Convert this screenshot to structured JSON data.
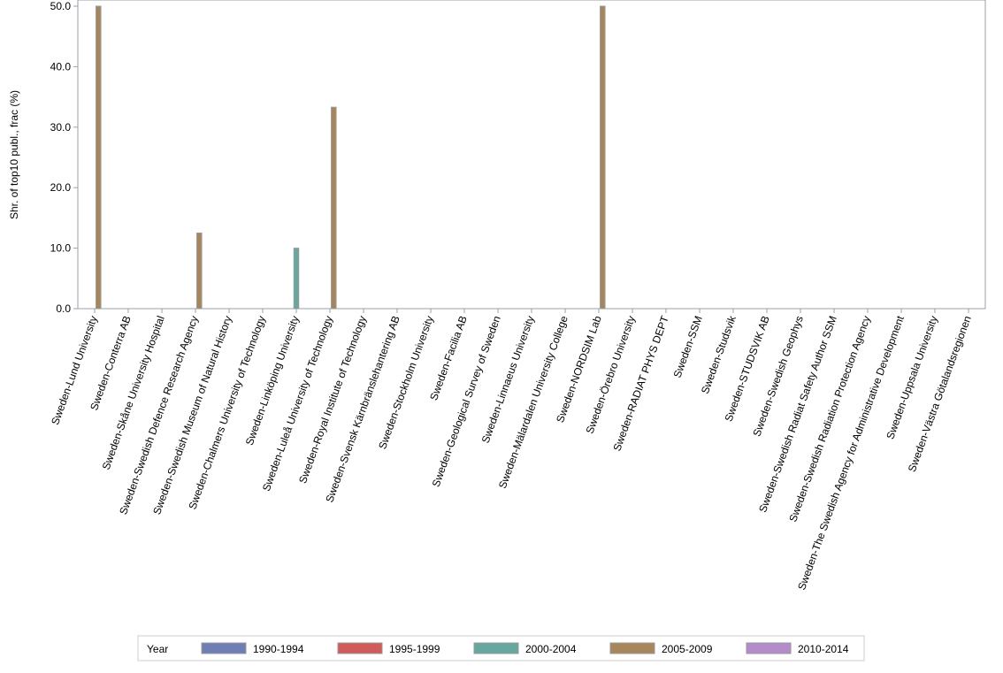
{
  "chart_data": {
    "type": "bar",
    "title": "",
    "xlabel": "",
    "ylabel": "Shr. of top10 publ., frac (%)",
    "ylim": [
      0,
      50
    ],
    "yticks": [
      "0.0",
      "10.0",
      "20.0",
      "30.0",
      "40.0",
      "50.0"
    ],
    "categories": [
      "Sweden-Lund University",
      "Sweden-Conterra AB",
      "Sweden-Skåne University Hospital",
      "Sweden-Swedish Defence Research Agency",
      "Sweden-Swedish Museum of Natural History",
      "Sweden-Chalmers University of Technology",
      "Sweden-Linköping University",
      "Sweden-Luleå University of Technology",
      "Sweden-Royal Institute of Technology",
      "Sweden-Svensk Kärnbränslehantering AB",
      "Sweden-Stockholm University",
      "Sweden-Facilia AB",
      "Sweden-Geological Survey of Sweden",
      "Sweden-Linnaeus University",
      "Sweden-Mälardalen University College",
      "Sweden-NORDSIM Lab",
      "Sweden-Örebro University",
      "Sweden-RADIAT PHYS DEPT",
      "Sweden-SSM",
      "Sweden-Studsvik",
      "Sweden-STUDSVIK AB",
      "Sweden-Swedish Geophys",
      "Sweden-Swedish Radiat Safety Author SSM",
      "Sweden-Swedish Radiation Protection Agency",
      "Sweden-The Swedish Agency for Administrative Development",
      "Sweden-Uppsala University",
      "Sweden-Västra Götalandsregionen"
    ],
    "legend_title": "Year",
    "legend_position": "bottom",
    "series": [
      {
        "name": "1990-1994",
        "color": "#6f7fb5",
        "values": [
          0,
          0,
          0,
          0,
          0,
          0,
          0,
          0,
          0,
          0,
          0,
          0,
          0,
          0,
          0,
          0,
          0,
          0,
          0,
          0,
          0,
          0,
          0,
          0,
          0,
          0,
          0
        ]
      },
      {
        "name": "1995-1999",
        "color": "#d05b5b",
        "values": [
          0,
          0,
          0,
          0,
          0,
          0,
          0,
          0,
          0,
          0,
          0,
          0,
          0,
          0,
          0,
          0,
          0,
          0,
          0,
          0,
          0,
          0,
          0,
          0,
          0,
          0,
          0
        ]
      },
      {
        "name": "2000-2004",
        "color": "#66a8a0",
        "values": [
          0,
          0,
          0,
          0,
          0,
          0,
          10,
          0,
          0,
          0,
          0,
          0,
          0,
          0,
          0,
          0,
          0,
          0,
          0,
          0,
          0,
          0,
          0,
          0,
          0,
          0,
          0
        ]
      },
      {
        "name": "2005-2009",
        "color": "#a8865b",
        "values": [
          50,
          0,
          0,
          12.5,
          0,
          0,
          0,
          33.3,
          0,
          0,
          0,
          0,
          0,
          0,
          0,
          50,
          0,
          0,
          0,
          0,
          0,
          0,
          0,
          0,
          0,
          0,
          0
        ]
      },
      {
        "name": "2010-2014",
        "color": "#b48ccc",
        "values": [
          0,
          0,
          0,
          0,
          0,
          0,
          0,
          0,
          0,
          0,
          0,
          0,
          0,
          0,
          0,
          0,
          0,
          0,
          0,
          0,
          0,
          0,
          0,
          0,
          0,
          0,
          0
        ]
      }
    ]
  }
}
